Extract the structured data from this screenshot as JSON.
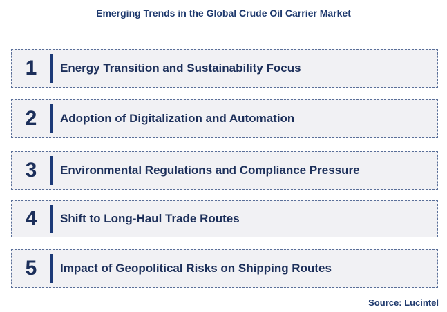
{
  "title": "Emerging Trends in the Global Crude Oil Carrier Market",
  "trends": [
    {
      "number": "1",
      "label": "Energy Transition and Sustainability Focus"
    },
    {
      "number": "2",
      "label": "Adoption of Digitalization and Automation"
    },
    {
      "number": "3",
      "label": "Environmental Regulations and Compliance Pressure"
    },
    {
      "number": "4",
      "label": "Shift to Long-Haul Trade Routes"
    },
    {
      "number": "5",
      "label": "Impact of Geopolitical Risks on Shipping Routes"
    }
  ],
  "source": "Source: Lucintel",
  "colors": {
    "accent": "#1c3a78",
    "box_fill": "#f1f1f4",
    "text": "#1c2f5a"
  }
}
